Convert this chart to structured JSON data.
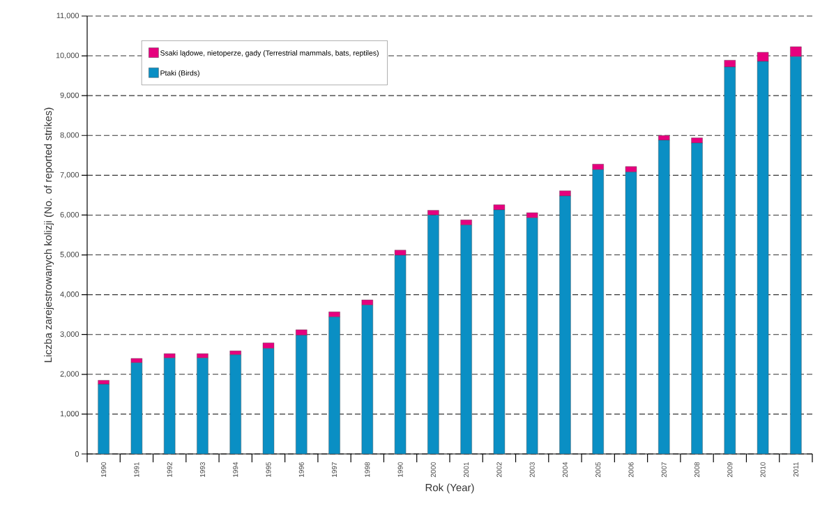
{
  "chart_data": {
    "type": "bar",
    "stacked": true,
    "xlabel": "Rok (Year)",
    "ylabel": "Liczba zarejestrowanych kolizji (No. of reported strikes)",
    "categories": [
      "1990",
      "1991",
      "1992",
      "1993",
      "1994",
      "1995",
      "1996",
      "1997",
      "1998",
      "1990",
      "2000",
      "2001",
      "2002",
      "2003",
      "2004",
      "2005",
      "2006",
      "2007",
      "2008",
      "2009",
      "2010",
      "2011"
    ],
    "series": [
      {
        "name": "Ptaki (Birds)",
        "color": "#0a8fc4",
        "values": [
          1750,
          2290,
          2410,
          2410,
          2490,
          2650,
          2980,
          3440,
          3740,
          4990,
          6000,
          5750,
          6130,
          5930,
          6480,
          7140,
          7080,
          7880,
          7810,
          9720,
          9860,
          9980
        ]
      },
      {
        "name": "Ssaki lądowe, nietoperze, gady (Terrestrial mammals, bats, reptiles)",
        "color": "#e6007e",
        "values": [
          100,
          110,
          110,
          110,
          100,
          140,
          140,
          130,
          130,
          130,
          120,
          130,
          130,
          130,
          130,
          140,
          140,
          120,
          130,
          170,
          230,
          250
        ]
      }
    ],
    "ylim": [
      0,
      11000
    ],
    "yticks": [
      {
        "value": 0,
        "label": "0"
      },
      {
        "value": 1000,
        "label": "1,000"
      },
      {
        "value": 2000,
        "label": "2,000"
      },
      {
        "value": 3000,
        "label": "3,000"
      },
      {
        "value": 4000,
        "label": "4,000"
      },
      {
        "value": 5000,
        "label": "5,000"
      },
      {
        "value": 6000,
        "label": "6,000"
      },
      {
        "value": 7000,
        "label": "7,000"
      },
      {
        "value": 8000,
        "label": "8,000"
      },
      {
        "value": 9000,
        "label": "9,000"
      },
      {
        "value": 10000,
        "label": "10,000"
      },
      {
        "value": 11000,
        "label": "11,000"
      }
    ],
    "grid": "y",
    "legend": "top left"
  }
}
